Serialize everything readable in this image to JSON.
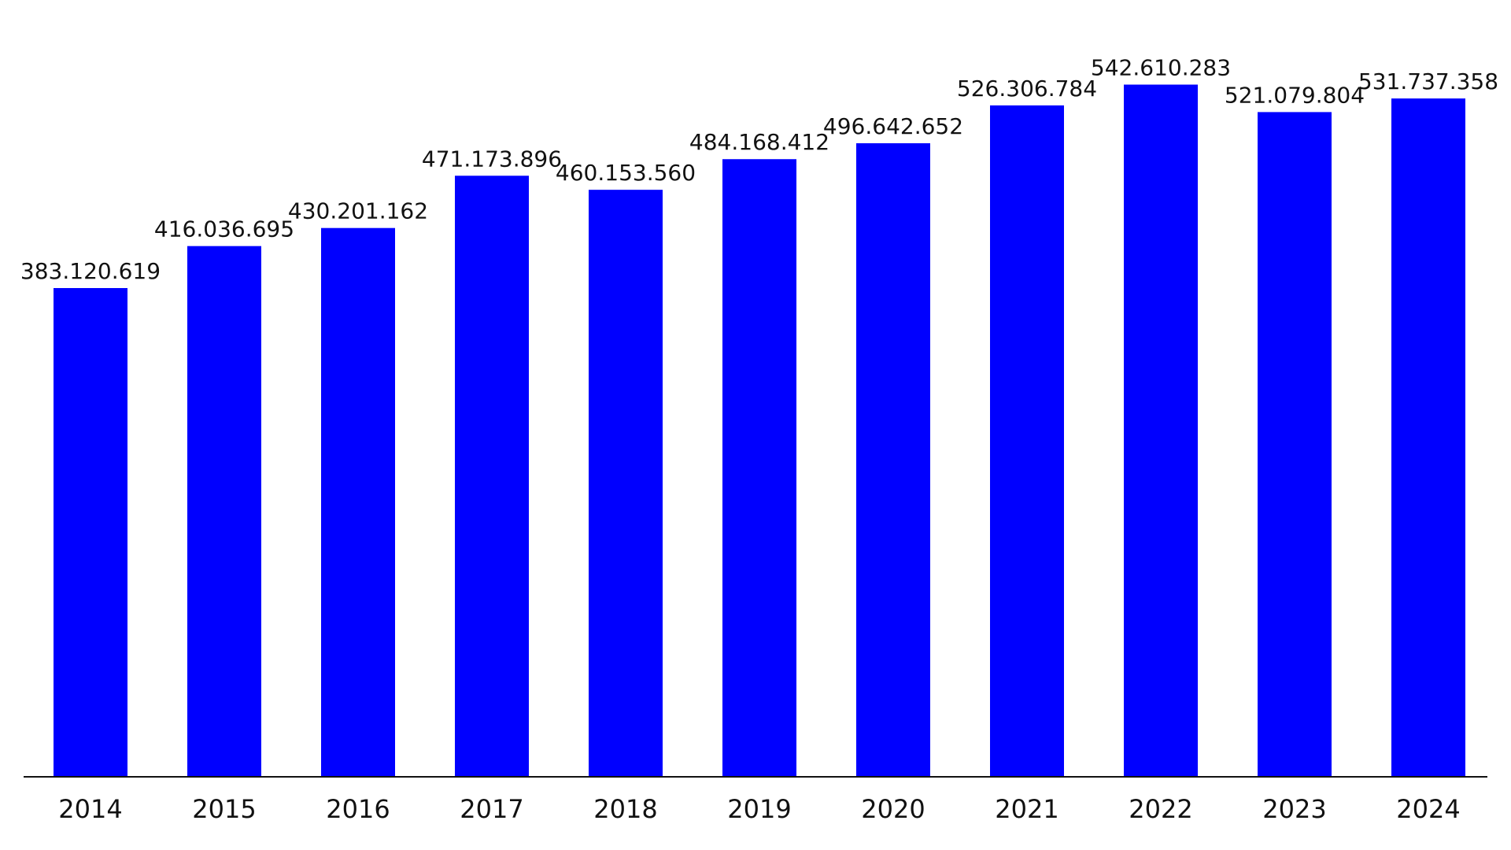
{
  "chart_data": {
    "type": "bar",
    "title": "",
    "xlabel": "",
    "ylabel": "",
    "ylim": [
      0,
      575000000
    ],
    "grid": false,
    "categories": [
      "2014",
      "2015",
      "2016",
      "2017",
      "2018",
      "2019",
      "2020",
      "2021",
      "2022",
      "2023",
      "2024"
    ],
    "values": [
      383120619,
      416036695,
      430201162,
      471173896,
      460153560,
      484168412,
      496642652,
      526306784,
      542610283,
      521079804,
      531737358
    ],
    "value_labels": [
      "383.120.619",
      "416.036.695",
      "430.201.162",
      "471.173.896",
      "460.153.560",
      "484.168.412",
      "496.642.652",
      "526.306.784",
      "542.610.283",
      "521.079.804",
      "531.737.358"
    ],
    "bar_color": "#0000ff",
    "axis_color": "#111111"
  }
}
